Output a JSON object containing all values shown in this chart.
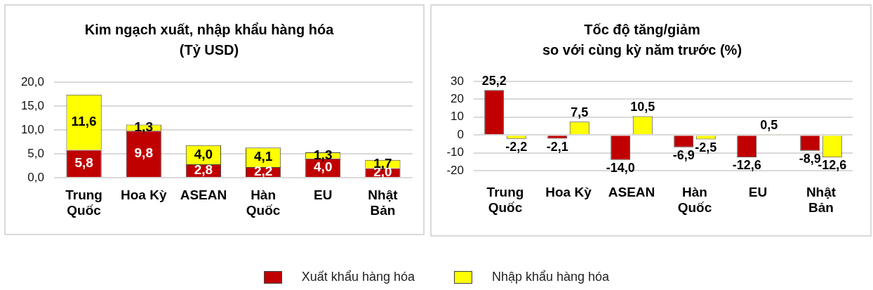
{
  "chart_data": [
    {
      "type": "bar",
      "title": "Kim ngạch xuất, nhập khẩu hàng hóa\n(Tỷ USD)",
      "categories": [
        "Trung Quốc",
        "Hoa Kỳ",
        "ASEAN",
        "Hàn Quốc",
        "EU",
        "Nhật Bản"
      ],
      "stacked": true,
      "series": [
        {
          "name": "Xuất khẩu hàng hóa",
          "color": "#c00000",
          "values": [
            5.8,
            9.8,
            2.8,
            2.2,
            4.0,
            2.0
          ],
          "value_labels": [
            "5,8",
            "9,8",
            "2,8",
            "2,2",
            "4,0",
            "2,0"
          ]
        },
        {
          "name": "Nhập khẩu hàng hóa",
          "color": "#ffff00",
          "values": [
            11.6,
            1.3,
            4.0,
            4.1,
            1.3,
            1.7
          ],
          "value_labels": [
            "11,6",
            "1,3",
            "4,0",
            "4,1",
            "1,3",
            "1,7"
          ]
        }
      ],
      "ylim": [
        0,
        20
      ],
      "yticks": [
        {
          "value": 0,
          "label": "0,0"
        },
        {
          "value": 5,
          "label": "5,0"
        },
        {
          "value": 10,
          "label": "10,0"
        },
        {
          "value": 15,
          "label": "15,0"
        },
        {
          "value": 20,
          "label": "20,0"
        }
      ],
      "grid": "y",
      "legend": "bottom"
    },
    {
      "type": "bar",
      "title": "Tốc độ tăng/giảm\nso với cùng kỳ năm trước (%)",
      "categories": [
        "Trung Quốc",
        "Hoa Kỳ",
        "ASEAN",
        "Hàn Quốc",
        "EU",
        "Nhật Bản"
      ],
      "series": [
        {
          "color": "#c00000",
          "values": [
            25.2,
            -2.1,
            -14.0,
            -6.9,
            -12.6,
            -8.9
          ],
          "value_labels": [
            "25,2",
            "-2,1",
            "-14,0",
            "-6,9",
            "-12,6",
            "-8,9"
          ]
        },
        {
          "color": "#ffff00",
          "values": [
            -2.2,
            7.5,
            10.5,
            -2.5,
            0.5,
            -12.6
          ],
          "value_labels": [
            "-2,2",
            "7,5",
            "10,5",
            "-2,5",
            "0,5",
            "-12,6"
          ]
        }
      ],
      "ylim": [
        -20,
        30
      ],
      "yticks": [
        -20,
        -10,
        0,
        10,
        20,
        30
      ],
      "grid": "y"
    }
  ]
}
